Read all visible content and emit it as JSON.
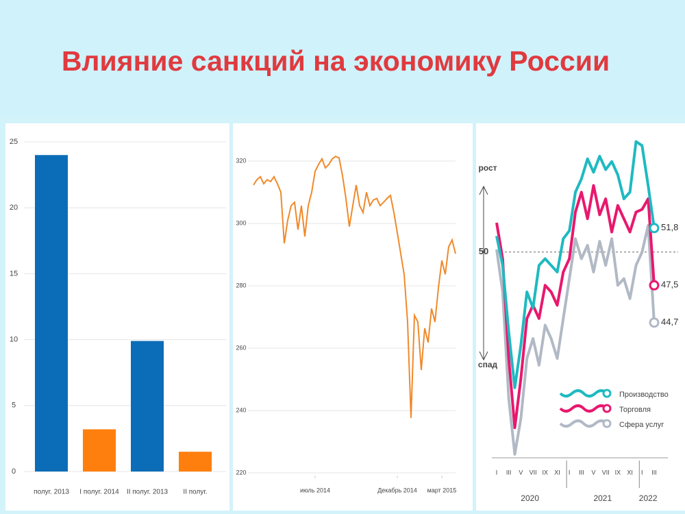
{
  "title": "Влияние санкций на экономику России",
  "chart_data": [
    {
      "type": "bar",
      "categories": [
        "полуг. 2013",
        "I полуг. 2014",
        "II полуг. 2013",
        "II полуг."
      ],
      "values": [
        24,
        3.2,
        9.9,
        1.5
      ],
      "colors": [
        "#0b6db7",
        "#ff7f0e",
        "#0b6db7",
        "#ff7f0e"
      ],
      "ylim": [
        0,
        25
      ],
      "yticks": [
        0,
        5,
        10,
        15,
        20,
        25
      ],
      "grid": true
    },
    {
      "type": "line",
      "color": "#f0892a",
      "x": [
        0,
        1,
        2,
        3,
        4,
        5,
        6,
        7,
        8,
        9,
        10,
        11,
        12,
        13,
        14,
        15,
        16,
        17,
        18,
        19,
        20,
        21,
        22,
        23,
        24,
        25,
        26,
        27,
        28,
        29,
        30,
        31,
        32,
        33,
        34,
        35,
        36,
        37,
        38,
        39,
        40,
        41,
        42,
        43,
        44,
        45,
        46,
        47,
        48,
        49,
        50,
        51,
        52,
        53,
        54,
        55,
        56,
        57,
        58,
        59
      ],
      "values": [
        312.3,
        314,
        315,
        312.7,
        314,
        313.4,
        315,
        312.7,
        310,
        293.6,
        301,
        305.7,
        306.8,
        298,
        305.7,
        295.8,
        305.7,
        310,
        316.7,
        318.9,
        320.7,
        317.8,
        318.9,
        320.7,
        321.5,
        321,
        315.3,
        308,
        299,
        305.7,
        312.3,
        305.7,
        303.5,
        310,
        305.7,
        307.5,
        308,
        305.7,
        306.8,
        308,
        309,
        303.5,
        297,
        290.3,
        283.7,
        268.4,
        237.6,
        270.5,
        268.4,
        253,
        266.4,
        261.8,
        272.7,
        268.4,
        279.3,
        288.1,
        283.7,
        292.5,
        294.7,
        290.3
      ],
      "xlim": [
        0,
        59
      ],
      "xticks": [
        {
          "value": 18,
          "label": "июль 2014"
        },
        {
          "value": 42,
          "label": "Декабрь 2014"
        },
        {
          "value": 55,
          "label": "март 2015"
        }
      ],
      "ylim": [
        220,
        320
      ],
      "yticks": [
        220,
        240,
        260,
        280,
        300,
        320
      ],
      "grid": true
    },
    {
      "type": "line",
      "categories": [
        "I",
        null,
        "III",
        null,
        "V",
        null,
        "VII",
        null,
        "IX",
        null,
        "XI",
        null,
        "I",
        null,
        "III",
        null,
        "V",
        null,
        "VII",
        null,
        "IX",
        null,
        "XI",
        null,
        "I",
        null,
        "III"
      ],
      "years": [
        "2020",
        "2021",
        "2022"
      ],
      "annotations": [
        "рост",
        "спад"
      ],
      "series": [
        {
          "name": "Производство",
          "color": "#1fb9c1",
          "values": [
            51.2,
            49,
            44,
            39.8,
            43,
            47,
            45.8,
            49,
            49.5,
            49,
            48.5,
            51,
            51.6,
            54.5,
            55.5,
            57,
            56,
            57.2,
            56.2,
            56.8,
            55.8,
            54,
            54.5,
            58.3,
            58,
            55,
            51.8
          ],
          "value_labels": [
            null,
            null,
            null,
            null,
            null,
            null,
            null,
            null,
            null,
            null,
            null,
            null,
            null,
            null,
            null,
            null,
            null,
            null,
            null,
            null,
            null,
            null,
            null,
            null,
            null,
            null,
            "51,8"
          ]
        },
        {
          "name": "Торговля",
          "color": "#e8186e",
          "values": [
            52.2,
            49.5,
            42,
            36.8,
            40.5,
            45,
            46,
            45,
            47.5,
            47,
            46,
            48.5,
            49.5,
            53,
            54.5,
            52.5,
            55,
            52.8,
            54,
            51.5,
            53.5,
            52.5,
            51.5,
            53,
            53.2,
            54,
            47.5
          ],
          "value_labels": [
            null,
            null,
            null,
            null,
            null,
            null,
            null,
            null,
            null,
            null,
            null,
            null,
            null,
            null,
            null,
            null,
            null,
            null,
            null,
            null,
            null,
            null,
            null,
            null,
            null,
            null,
            "47,5"
          ]
        },
        {
          "name": "Сфера услуг",
          "color": "#b1b9c5",
          "values": [
            50.2,
            47,
            39,
            34.8,
            37.5,
            42,
            43.5,
            41.5,
            44.5,
            43.5,
            42,
            45,
            48,
            51,
            49.5,
            50.5,
            48.5,
            50.8,
            49,
            51,
            47.5,
            48,
            46.5,
            49,
            50,
            52,
            44.7
          ],
          "value_labels": [
            null,
            null,
            null,
            null,
            null,
            null,
            null,
            null,
            null,
            null,
            null,
            null,
            null,
            null,
            null,
            null,
            null,
            null,
            null,
            null,
            null,
            null,
            null,
            null,
            null,
            null,
            "44,7"
          ]
        }
      ],
      "ylim": [
        35,
        59
      ],
      "yticks": [
        50
      ],
      "grid": "dashed"
    }
  ]
}
